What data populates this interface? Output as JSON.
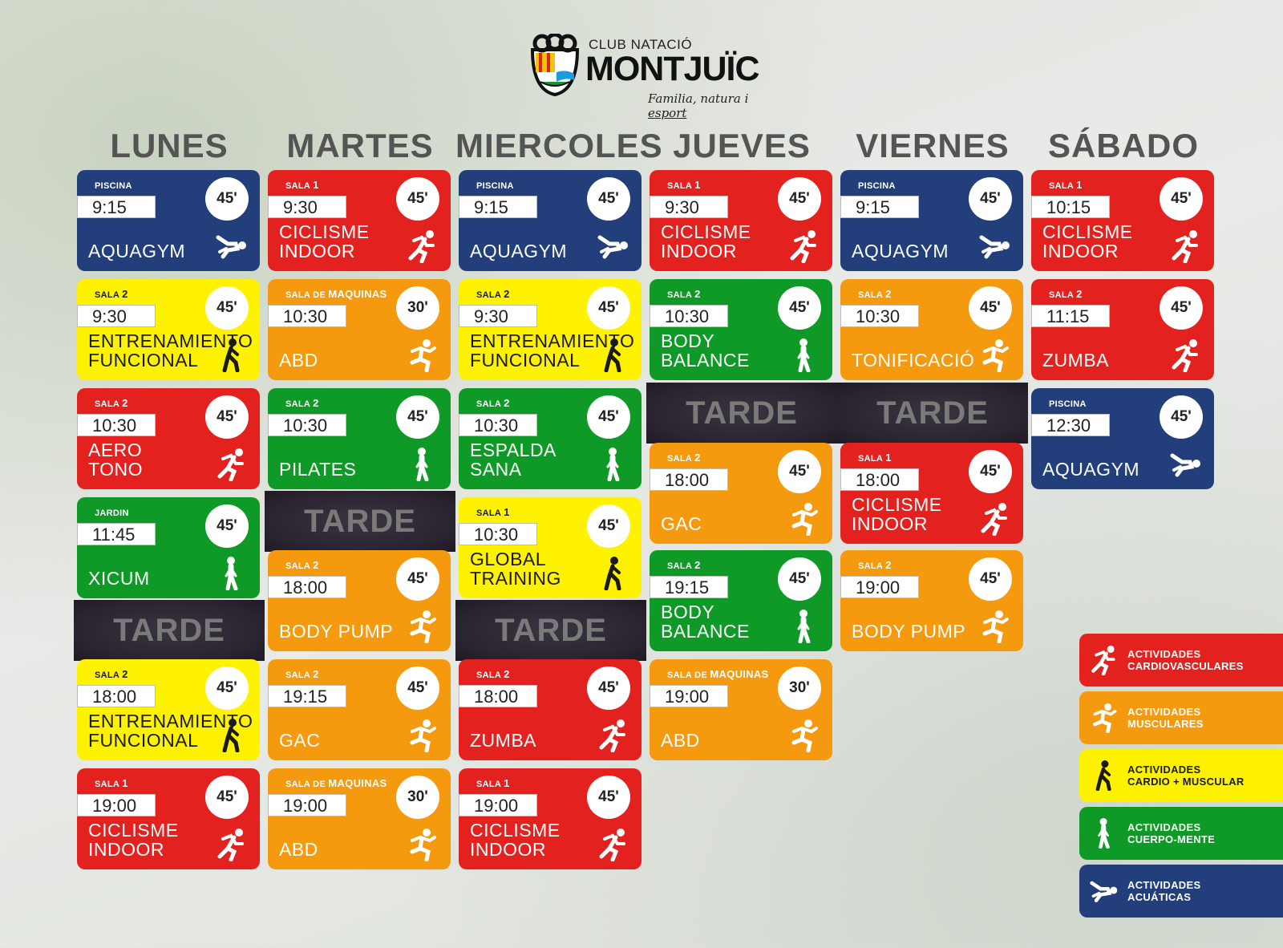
{
  "logo": {
    "club": "CLUB NATACIÓ",
    "name": "MONTJUÏC",
    "tagline_prefix": "Familia, natura i",
    "tagline_suffix": "esport"
  },
  "days": [
    "LUNES",
    "MARTES",
    "MIERCOLES",
    "JUEVES",
    "VIERNES",
    "SÁBADO"
  ],
  "tarde_label": "TARDE",
  "schedule": {
    "lunes": [
      {
        "room_prefix": "PISCINA",
        "room_num": "",
        "time": "9:15",
        "duration": "45'",
        "activity_line1": "AQUAGYM",
        "activity_line2": "",
        "color": "#223f7b",
        "icon": "swim-icon"
      },
      {
        "room_prefix": "SALA",
        "room_num": "2",
        "time": "9:30",
        "duration": "45'",
        "activity_line1": "ENTRENAMIENTO",
        "activity_line2": "FUNCIONAL",
        "color": "#fff200",
        "icon": "walk-icon"
      },
      {
        "room_prefix": "SALA",
        "room_num": "2",
        "time": "10:30",
        "duration": "45'",
        "activity_line1": "AERO",
        "activity_line2": "TONO",
        "color": "#e3221f",
        "icon": "run-icon"
      },
      {
        "room_prefix": "JARDIN",
        "room_num": "",
        "time": "11:45",
        "duration": "45'",
        "activity_line1": "XICUM",
        "activity_line2": "",
        "color": "#0f9a27",
        "icon": "stand-icon"
      },
      {
        "room_prefix": "SALA",
        "room_num": "2",
        "time": "18:00",
        "duration": "45'",
        "activity_line1": "ENTRENAMIENTO",
        "activity_line2": "FUNCIONAL",
        "color": "#fff200",
        "icon": "walk-icon"
      },
      {
        "room_prefix": "SALA",
        "room_num": "1",
        "time": "19:00",
        "duration": "45'",
        "activity_line1": "CICLISME",
        "activity_line2": "INDOOR",
        "color": "#e3221f",
        "icon": "run-icon"
      }
    ],
    "martes": [
      {
        "room_prefix": "SALA",
        "room_num": "1",
        "time": "9:30",
        "duration": "45'",
        "activity_line1": "CICLISME",
        "activity_line2": "INDOOR",
        "color": "#e3221f",
        "icon": "run-icon"
      },
      {
        "room_prefix": "SALA DE",
        "room_num": "MAQUINAS",
        "time": "10:30",
        "duration": "30'",
        "activity_line1": "ABD",
        "activity_line2": "",
        "color": "#f59a0e",
        "icon": "muscle-run-icon"
      },
      {
        "room_prefix": "SALA",
        "room_num": "2",
        "time": "10:30",
        "duration": "45'",
        "activity_line1": "PILATES",
        "activity_line2": "",
        "color": "#0f9a27",
        "icon": "stand-icon"
      },
      {
        "room_prefix": "SALA",
        "room_num": "2",
        "time": "18:00",
        "duration": "45'",
        "activity_line1": "BODY PUMP",
        "activity_line2": "",
        "color": "#f59a0e",
        "icon": "muscle-run-icon"
      },
      {
        "room_prefix": "SALA",
        "room_num": "2",
        "time": "19:15",
        "duration": "45'",
        "activity_line1": "GAC",
        "activity_line2": "",
        "color": "#f59a0e",
        "icon": "muscle-run-icon"
      },
      {
        "room_prefix": "SALA DE",
        "room_num": "MAQUINAS",
        "time": "19:00",
        "duration": "30'",
        "activity_line1": "ABD",
        "activity_line2": "",
        "color": "#f59a0e",
        "icon": "muscle-run-icon"
      }
    ],
    "miercoles": [
      {
        "room_prefix": "PISCINA",
        "room_num": "",
        "time": "9:15",
        "duration": "45'",
        "activity_line1": "AQUAGYM",
        "activity_line2": "",
        "color": "#223f7b",
        "icon": "swim-icon"
      },
      {
        "room_prefix": "SALA",
        "room_num": "2",
        "time": "9:30",
        "duration": "45'",
        "activity_line1": "ENTRENAMIENTO",
        "activity_line2": "FUNCIONAL",
        "color": "#fff200",
        "icon": "walk-icon"
      },
      {
        "room_prefix": "SALA",
        "room_num": "2",
        "time": "10:30",
        "duration": "45'",
        "activity_line1": "ESPALDA",
        "activity_line2": "SANA",
        "color": "#0f9a27",
        "icon": "stand-icon"
      },
      {
        "room_prefix": "SALA",
        "room_num": "1",
        "time": "10:30",
        "duration": "45'",
        "activity_line1": "GLOBAL",
        "activity_line2": "TRAINING",
        "color": "#fff200",
        "icon": "walk-icon"
      },
      {
        "room_prefix": "SALA",
        "room_num": "2",
        "time": "18:00",
        "duration": "45'",
        "activity_line1": "ZUMBA",
        "activity_line2": "",
        "color": "#e3221f",
        "icon": "run-icon"
      },
      {
        "room_prefix": "SALA",
        "room_num": "1",
        "time": "19:00",
        "duration": "45'",
        "activity_line1": "CICLISME",
        "activity_line2": "INDOOR",
        "color": "#e3221f",
        "icon": "run-icon"
      }
    ],
    "jueves": [
      {
        "room_prefix": "SALA",
        "room_num": "1",
        "time": "9:30",
        "duration": "45'",
        "activity_line1": "CICLISME",
        "activity_line2": "INDOOR",
        "color": "#e3221f",
        "icon": "run-icon"
      },
      {
        "room_prefix": "SALA",
        "room_num": "2",
        "time": "10:30",
        "duration": "45'",
        "activity_line1": "BODY",
        "activity_line2": "BALANCE",
        "color": "#0f9a27",
        "icon": "stand-icon"
      },
      {
        "room_prefix": "SALA",
        "room_num": "2",
        "time": "18:00",
        "duration": "45'",
        "activity_line1": "GAC",
        "activity_line2": "",
        "color": "#f59a0e",
        "icon": "muscle-run-icon"
      },
      {
        "room_prefix": "SALA",
        "room_num": "2",
        "time": "19:15",
        "duration": "45'",
        "activity_line1": "BODY",
        "activity_line2": "BALANCE",
        "color": "#0f9a27",
        "icon": "stand-icon"
      },
      {
        "room_prefix": "SALA DE",
        "room_num": "MAQUINAS",
        "time": "19:00",
        "duration": "30'",
        "activity_line1": "ABD",
        "activity_line2": "",
        "color": "#f59a0e",
        "icon": "muscle-run-icon"
      }
    ],
    "viernes": [
      {
        "room_prefix": "PISCINA",
        "room_num": "",
        "time": "9:15",
        "duration": "45'",
        "activity_line1": "AQUAGYM",
        "activity_line2": "",
        "color": "#223f7b",
        "icon": "swim-icon"
      },
      {
        "room_prefix": "SALA",
        "room_num": "2",
        "time": "10:30",
        "duration": "45'",
        "activity_line1": "TONIFICACIÓ",
        "activity_line2": "",
        "color": "#f59a0e",
        "icon": "muscle-run-icon"
      },
      {
        "room_prefix": "SALA",
        "room_num": "1",
        "time": "18:00",
        "duration": "45'",
        "activity_line1": "CICLISME",
        "activity_line2": "INDOOR",
        "color": "#e3221f",
        "icon": "run-icon"
      },
      {
        "room_prefix": "SALA",
        "room_num": "2",
        "time": "19:00",
        "duration": "45'",
        "activity_line1": "BODY PUMP",
        "activity_line2": "",
        "color": "#f59a0e",
        "icon": "muscle-run-icon"
      }
    ],
    "sabado": [
      {
        "room_prefix": "SALA",
        "room_num": "1",
        "time": "10:15",
        "duration": "45'",
        "activity_line1": "CICLISME",
        "activity_line2": "INDOOR",
        "color": "#e3221f",
        "icon": "run-icon"
      },
      {
        "room_prefix": "SALA",
        "room_num": "2",
        "time": "11:15",
        "duration": "45'",
        "activity_line1": "ZUMBA",
        "activity_line2": "",
        "color": "#e3221f",
        "icon": "run-icon"
      },
      {
        "room_prefix": "PISCINA",
        "room_num": "",
        "time": "12:30",
        "duration": "45'",
        "activity_line1": "AQUAGYM",
        "activity_line2": "",
        "color": "#223f7b",
        "icon": "swim-icon"
      }
    ]
  },
  "legend": [
    {
      "line1": "ACTIVIDADES",
      "line2": "CARDIOVASCULARES",
      "color": "#e3221f",
      "icon": "run-icon"
    },
    {
      "line1": "ACTIVIDADES",
      "line2": "MUSCULARES",
      "color": "#f59a0e",
      "icon": "muscle-run-icon"
    },
    {
      "line1": "ACTIVIDADES",
      "line2": "CARDIO + MUSCULAR",
      "color": "#fff200",
      "icon": "walk-icon"
    },
    {
      "line1": "ACTIVIDADES",
      "line2": "CUERPO-MENTE",
      "color": "#0f9a27",
      "icon": "stand-icon"
    },
    {
      "line1": "ACTIVIDADES",
      "line2": "ACUÁTICAS",
      "color": "#223f7b",
      "icon": "swim-icon"
    }
  ]
}
